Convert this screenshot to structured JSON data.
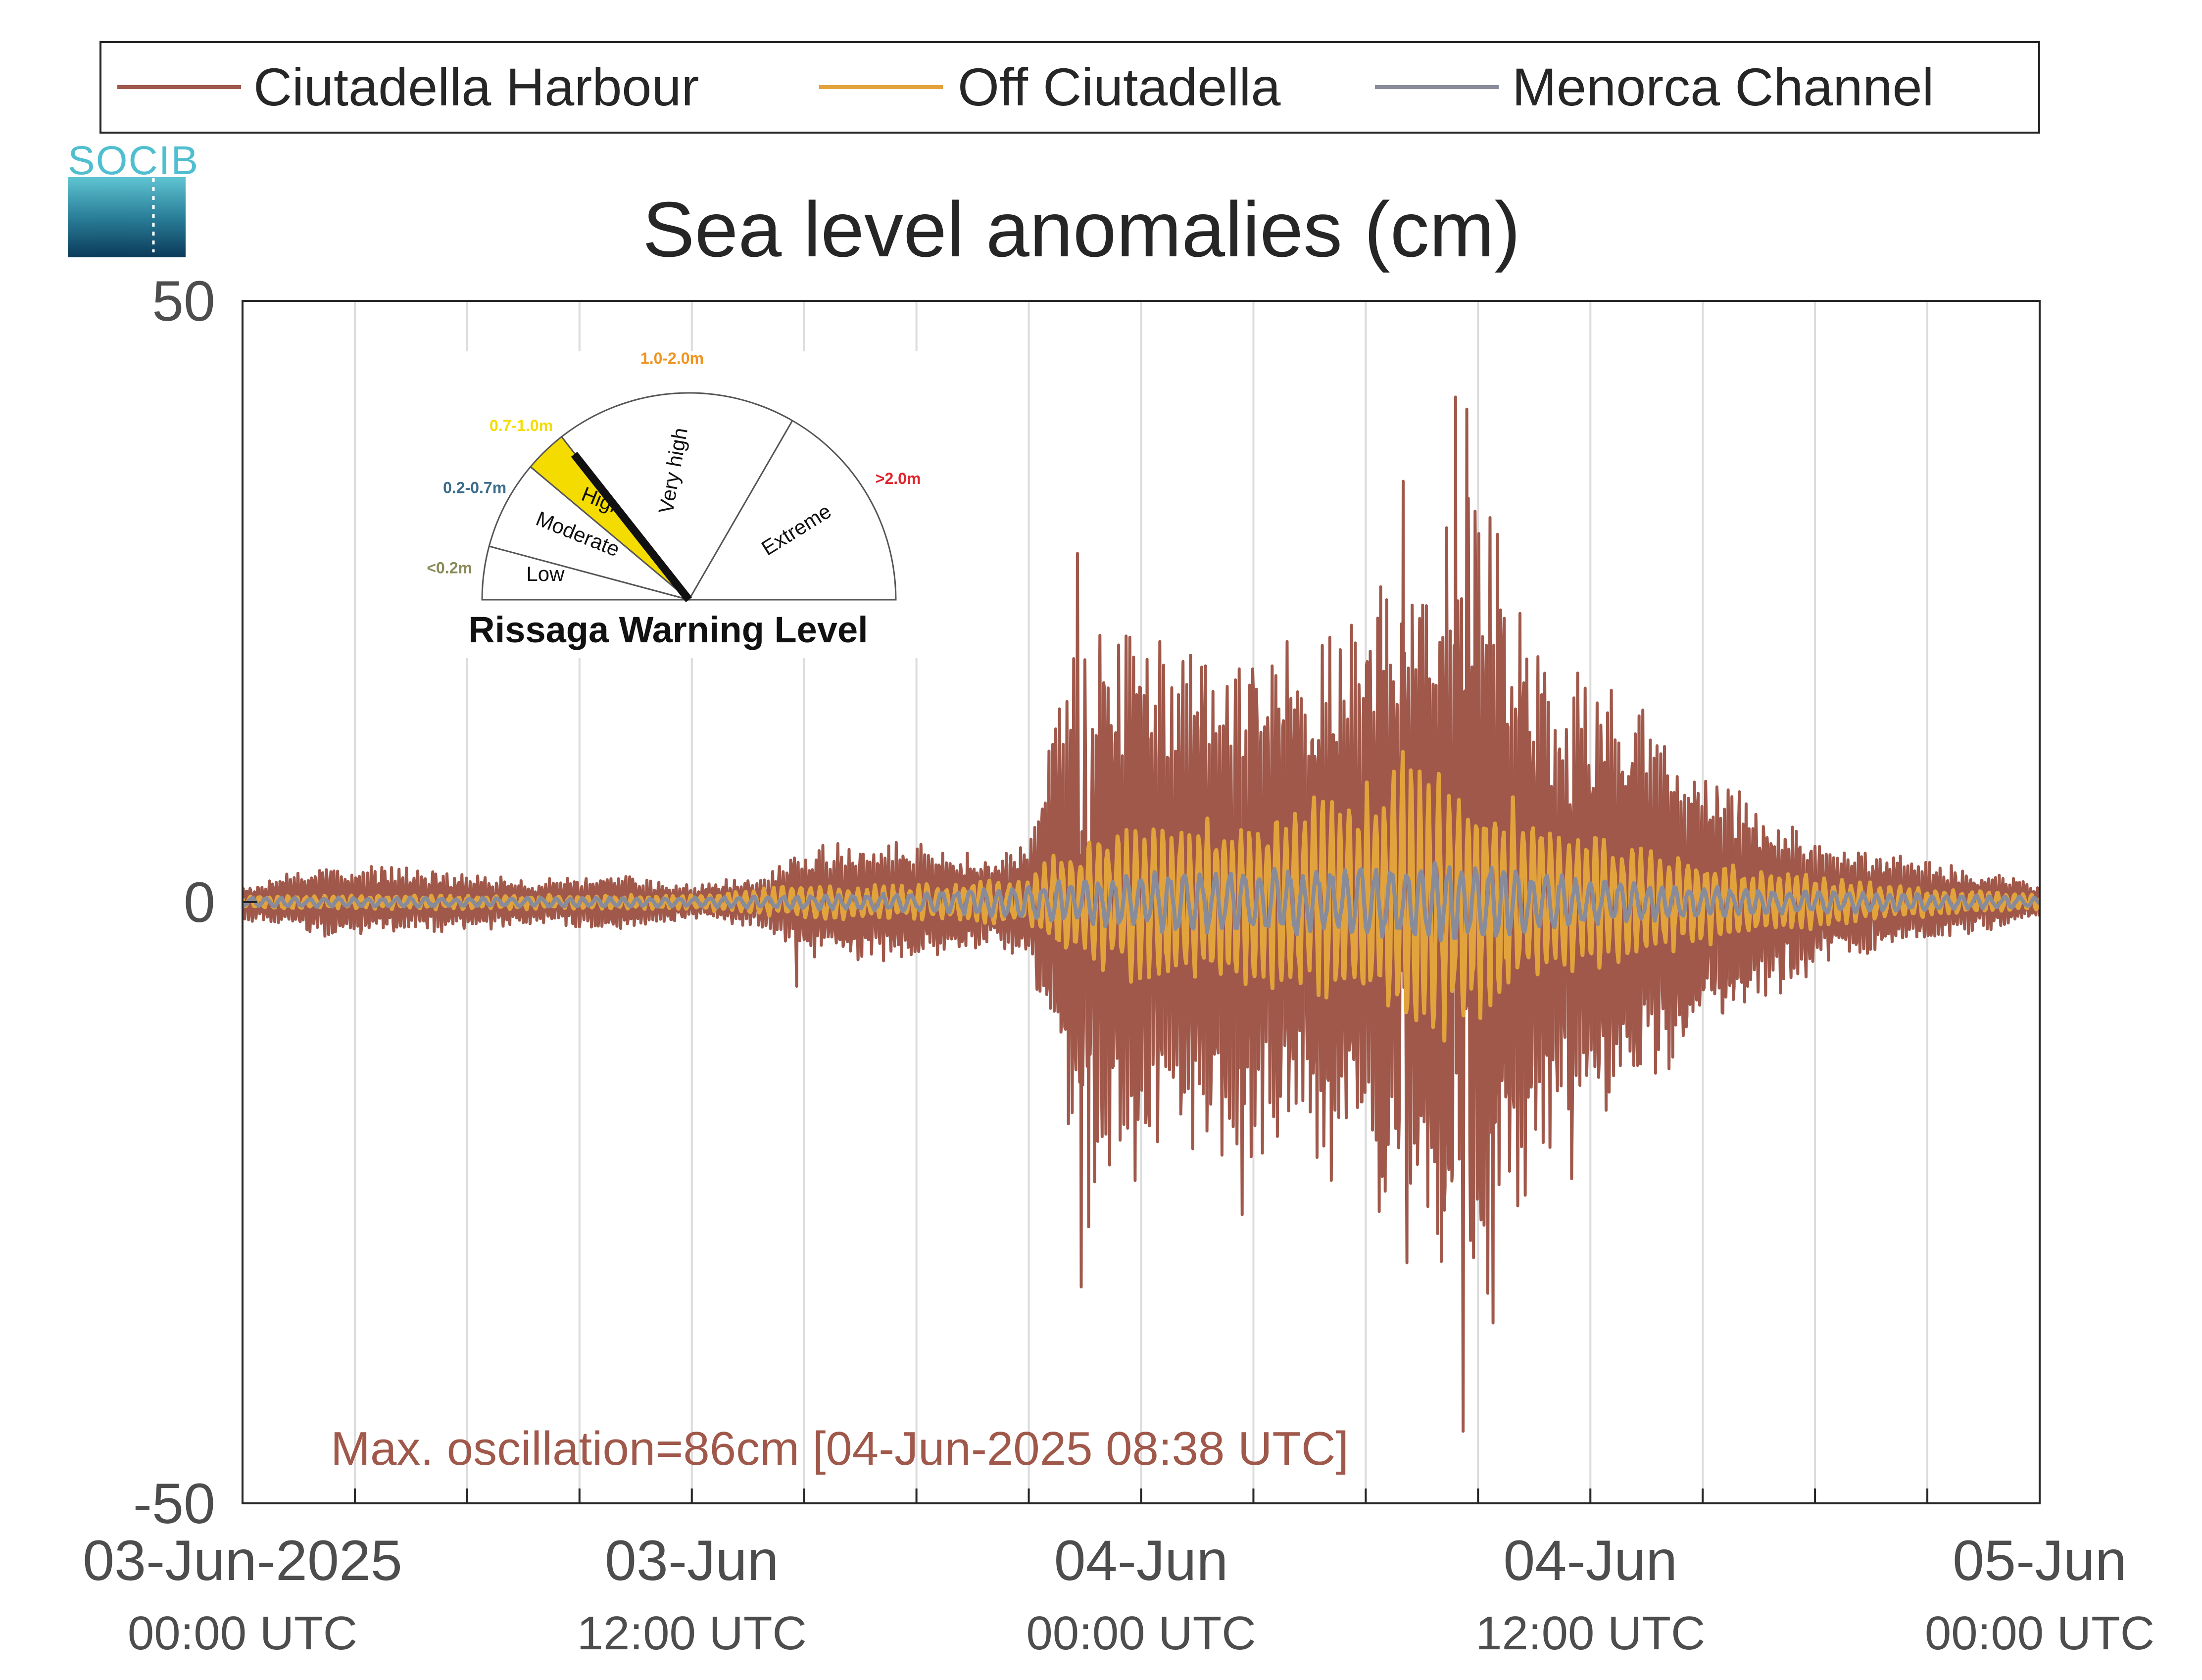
{
  "logo": {
    "text": "SOCIB",
    "colors": [
      "#4fbfd0",
      "#2a7f99",
      "#0b3a5a"
    ]
  },
  "legend": [
    {
      "label": "Ciutadella Harbour",
      "color": "#a0584a"
    },
    {
      "label": "Off Ciutadella",
      "color": "#e2a33c"
    },
    {
      "label": "Menorca Channel",
      "color": "#888b99"
    }
  ],
  "gauge": {
    "title": "Rissaga Warning Level",
    "active_level": "High",
    "sectors": [
      {
        "name": "Low",
        "range": "<0.2m",
        "range_color": "#8a8a5a"
      },
      {
        "name": "Moderate",
        "range": "0.2-0.7m",
        "range_color": "#3b6d8c"
      },
      {
        "name": "High",
        "range": "0.7-1.0m",
        "range_color": "#f5dc00",
        "fill": "#f5dc00"
      },
      {
        "name": "Very high",
        "range": "1.0-2.0m",
        "range_color": "#f0931e"
      },
      {
        "name": "Extreme",
        "range": ">2.0m",
        "range_color": "#e0242c"
      }
    ]
  },
  "chart_data": {
    "type": "line",
    "title": "Sea level anomalies (cm)",
    "ylim": [
      -50,
      50
    ],
    "y_ticks": [
      "50",
      "0",
      "-50"
    ],
    "x_range_hours": [
      0,
      48
    ],
    "x_ticks": [
      {
        "line1": "03-Jun-2025",
        "line2": "00:00 UTC"
      },
      {
        "line1": "03-Jun",
        "line2": "12:00 UTC"
      },
      {
        "line1": "04-Jun",
        "line2": "00:00 UTC"
      },
      {
        "line1": "04-Jun",
        "line2": "12:00 UTC"
      },
      {
        "line1": "05-Jun",
        "line2": "00:00 UTC"
      }
    ],
    "grid": "vertical every 3 h",
    "annotation": "Max. oscillation=86cm [04-Jun-2025 08:38 UTC]",
    "series": [
      {
        "name": "Ciutadella Harbour",
        "color": "#a0584a",
        "envelope": [
          [
            0,
            1.5
          ],
          [
            2,
            3
          ],
          [
            4,
            3
          ],
          [
            6,
            2.5
          ],
          [
            8,
            2
          ],
          [
            10,
            2.5
          ],
          [
            12,
            1.5
          ],
          [
            14,
            2.5
          ],
          [
            15,
            5
          ],
          [
            16.5,
            5
          ],
          [
            18,
            5
          ],
          [
            20,
            4
          ],
          [
            21,
            5
          ],
          [
            22,
            20
          ],
          [
            23,
            25
          ],
          [
            24,
            24
          ],
          [
            25,
            22
          ],
          [
            26,
            22
          ],
          [
            28,
            22
          ],
          [
            30,
            25
          ],
          [
            31,
            30
          ],
          [
            32,
            30
          ],
          [
            32.5,
            40
          ],
          [
            33,
            38
          ],
          [
            34,
            26
          ],
          [
            35,
            20
          ],
          [
            36,
            20
          ],
          [
            38,
            15
          ],
          [
            40,
            10
          ],
          [
            42,
            6
          ],
          [
            44,
            4
          ],
          [
            46,
            3
          ],
          [
            48,
            1.5
          ]
        ],
        "spikes": [
          {
            "t": 32.4,
            "y": 42
          },
          {
            "t": 32.6,
            "y": -44
          },
          {
            "t": 32.7,
            "y": 41
          },
          {
            "t": 22.3,
            "y": 29
          },
          {
            "t": 22.4,
            "y": -32
          },
          {
            "t": 22.6,
            "y": -27
          },
          {
            "t": 31.0,
            "y": 35
          },
          {
            "t": 31.1,
            "y": -30
          },
          {
            "t": 33.4,
            "y": -35
          },
          {
            "t": 35.5,
            "y": -23
          },
          {
            "t": 26.7,
            "y": -26
          },
          {
            "t": 14.8,
            "y": -7
          }
        ]
      },
      {
        "name": "Off Ciutadella",
        "color": "#e2a33c",
        "envelope": [
          [
            0,
            0.6
          ],
          [
            12,
            0.6
          ],
          [
            15,
            1.5
          ],
          [
            18,
            1.5
          ],
          [
            21,
            2
          ],
          [
            22,
            5
          ],
          [
            24,
            7
          ],
          [
            27,
            8
          ],
          [
            30,
            10
          ],
          [
            31,
            14
          ],
          [
            32,
            12
          ],
          [
            33,
            10
          ],
          [
            36,
            6
          ],
          [
            40,
            3
          ],
          [
            44,
            1.5
          ],
          [
            48,
            0.6
          ]
        ]
      },
      {
        "name": "Menorca Channel",
        "color": "#888b99",
        "envelope": [
          [
            0,
            0.4
          ],
          [
            12,
            0.4
          ],
          [
            18,
            0.8
          ],
          [
            21,
            1.5
          ],
          [
            24,
            2.5
          ],
          [
            28,
            3
          ],
          [
            31,
            3.5
          ],
          [
            33,
            3.5
          ],
          [
            36,
            2
          ],
          [
            40,
            1.2
          ],
          [
            44,
            0.8
          ],
          [
            48,
            0.4
          ]
        ]
      }
    ]
  }
}
